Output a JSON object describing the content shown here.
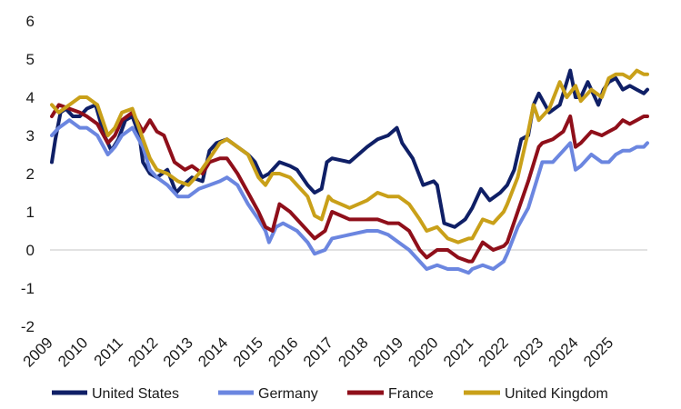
{
  "chart_data": {
    "type": "line",
    "title": "",
    "xlabel": "",
    "ylabel": "",
    "ylim": [
      -2,
      6
    ],
    "yticks": [
      "6",
      "5",
      "4",
      "3",
      "2",
      "1",
      "0",
      "-1",
      "-2"
    ],
    "xlim": [
      2009,
      2026
    ],
    "xticks": [
      "2009",
      "2010",
      "2011",
      "2012",
      "2013",
      "2014",
      "2015",
      "2016",
      "2017",
      "2018",
      "2019",
      "2020",
      "2021",
      "2022",
      "2023",
      "2024",
      "2025"
    ],
    "grid": false,
    "legend_position": "bottom",
    "series": [
      {
        "name": "United States",
        "color": "#0f1f66",
        "x": [
          2009.0,
          2009.1,
          2009.25,
          2009.4,
          2009.6,
          2009.8,
          2010.0,
          2010.25,
          2010.5,
          2010.7,
          2010.9,
          2011.1,
          2011.3,
          2011.5,
          2011.6,
          2011.8,
          2012.0,
          2012.3,
          2012.55,
          2012.75,
          2013.0,
          2013.3,
          2013.5,
          2013.7,
          2014.0,
          2014.3,
          2014.6,
          2014.8,
          2015.0,
          2015.2,
          2015.5,
          2015.8,
          2016.0,
          2016.3,
          2016.5,
          2016.7,
          2016.85,
          2017.0,
          2017.5,
          2018.0,
          2018.3,
          2018.6,
          2018.85,
          2019.0,
          2019.3,
          2019.6,
          2019.9,
          2020.0,
          2020.2,
          2020.5,
          2020.8,
          2021.0,
          2021.25,
          2021.5,
          2021.8,
          2022.0,
          2022.2,
          2022.4,
          2022.6,
          2022.75,
          2022.9,
          2023.2,
          2023.5,
          2023.8,
          2023.95,
          2024.1,
          2024.3,
          2024.6,
          2024.75,
          2024.9,
          2025.1,
          2025.3,
          2025.5,
          2025.7,
          2025.9,
          2026.0
        ],
        "values": [
          2.3,
          2.9,
          3.6,
          3.7,
          3.5,
          3.5,
          3.7,
          3.8,
          3.0,
          2.6,
          2.9,
          3.4,
          3.5,
          3.0,
          2.3,
          2.0,
          1.9,
          2.1,
          1.5,
          1.7,
          1.9,
          1.8,
          2.6,
          2.8,
          2.9,
          2.7,
          2.5,
          2.3,
          1.9,
          2.0,
          2.3,
          2.2,
          2.1,
          1.7,
          1.5,
          1.6,
          2.3,
          2.4,
          2.3,
          2.7,
          2.9,
          3.0,
          3.2,
          2.8,
          2.4,
          1.7,
          1.8,
          1.7,
          0.7,
          0.6,
          0.8,
          1.1,
          1.6,
          1.3,
          1.5,
          1.7,
          2.1,
          2.9,
          3.0,
          3.8,
          4.1,
          3.6,
          3.8,
          4.7,
          4.0,
          4.0,
          4.4,
          3.8,
          4.2,
          4.4,
          4.5,
          4.2,
          4.3,
          4.2,
          4.1,
          4.2
        ]
      },
      {
        "name": "Germany",
        "color": "#6b86e0",
        "x": [
          2009.0,
          2009.2,
          2009.5,
          2009.8,
          2010.0,
          2010.3,
          2010.6,
          2010.8,
          2011.0,
          2011.3,
          2011.6,
          2011.8,
          2012.0,
          2012.3,
          2012.6,
          2012.9,
          2013.2,
          2013.5,
          2013.8,
          2014.0,
          2014.3,
          2014.6,
          2014.9,
          2015.1,
          2015.2,
          2015.4,
          2015.6,
          2015.8,
          2016.0,
          2016.3,
          2016.5,
          2016.8,
          2017.0,
          2017.5,
          2018.0,
          2018.3,
          2018.6,
          2018.9,
          2019.2,
          2019.5,
          2019.7,
          2020.0,
          2020.3,
          2020.6,
          2020.9,
          2021.0,
          2021.3,
          2021.6,
          2021.9,
          2022.0,
          2022.3,
          2022.6,
          2022.9,
          2023.0,
          2023.3,
          2023.6,
          2023.8,
          2023.95,
          2024.1,
          2024.4,
          2024.7,
          2024.9,
          2025.1,
          2025.3,
          2025.5,
          2025.7,
          2025.9,
          2026.0
        ],
        "values": [
          3.0,
          3.2,
          3.4,
          3.2,
          3.2,
          3.0,
          2.5,
          2.7,
          3.0,
          3.2,
          2.7,
          2.1,
          1.9,
          1.7,
          1.4,
          1.4,
          1.6,
          1.7,
          1.8,
          1.9,
          1.7,
          1.2,
          0.8,
          0.5,
          0.2,
          0.6,
          0.7,
          0.6,
          0.5,
          0.2,
          -0.1,
          0.0,
          0.3,
          0.4,
          0.5,
          0.5,
          0.4,
          0.2,
          0.0,
          -0.3,
          -0.5,
          -0.4,
          -0.5,
          -0.5,
          -0.6,
          -0.5,
          -0.4,
          -0.5,
          -0.3,
          -0.1,
          0.6,
          1.1,
          2.0,
          2.3,
          2.3,
          2.6,
          2.8,
          2.1,
          2.2,
          2.5,
          2.3,
          2.3,
          2.5,
          2.6,
          2.6,
          2.7,
          2.7,
          2.8
        ]
      },
      {
        "name": "France",
        "color": "#8f0f1a",
        "x": [
          2009.0,
          2009.2,
          2009.5,
          2009.8,
          2010.0,
          2010.3,
          2010.6,
          2010.8,
          2011.0,
          2011.3,
          2011.6,
          2011.8,
          2012.0,
          2012.2,
          2012.5,
          2012.8,
          2013.0,
          2013.3,
          2013.5,
          2013.8,
          2014.0,
          2014.3,
          2014.6,
          2014.9,
          2015.1,
          2015.3,
          2015.5,
          2015.8,
          2016.0,
          2016.3,
          2016.5,
          2016.8,
          2017.0,
          2017.5,
          2018.0,
          2018.3,
          2018.6,
          2018.9,
          2019.2,
          2019.5,
          2019.7,
          2020.0,
          2020.3,
          2020.6,
          2020.9,
          2021.0,
          2021.3,
          2021.6,
          2021.9,
          2022.0,
          2022.3,
          2022.6,
          2022.9,
          2023.0,
          2023.3,
          2023.6,
          2023.8,
          2023.95,
          2024.1,
          2024.4,
          2024.7,
          2024.9,
          2025.1,
          2025.3,
          2025.5,
          2025.7,
          2025.9,
          2026.0
        ],
        "values": [
          3.5,
          3.8,
          3.7,
          3.6,
          3.5,
          3.3,
          2.8,
          3.0,
          3.4,
          3.6,
          3.1,
          3.4,
          3.1,
          3.0,
          2.3,
          2.1,
          2.2,
          2.0,
          2.3,
          2.4,
          2.4,
          2.0,
          1.5,
          1.0,
          0.6,
          0.5,
          1.2,
          1.0,
          0.8,
          0.5,
          0.3,
          0.5,
          1.0,
          0.8,
          0.8,
          0.8,
          0.7,
          0.7,
          0.5,
          0.0,
          -0.2,
          0.0,
          0.0,
          -0.2,
          -0.3,
          -0.3,
          0.2,
          0.0,
          0.1,
          0.2,
          1.0,
          1.8,
          2.7,
          2.8,
          2.9,
          3.1,
          3.5,
          2.7,
          2.8,
          3.1,
          3.0,
          3.1,
          3.2,
          3.4,
          3.3,
          3.4,
          3.5,
          3.5
        ]
      },
      {
        "name": "United Kingdom",
        "color": "#c9a019",
        "x": [
          2009.0,
          2009.2,
          2009.5,
          2009.8,
          2010.0,
          2010.3,
          2010.6,
          2010.8,
          2011.0,
          2011.3,
          2011.6,
          2011.8,
          2012.0,
          2012.3,
          2012.6,
          2012.9,
          2013.2,
          2013.5,
          2013.8,
          2014.0,
          2014.3,
          2014.6,
          2014.9,
          2015.1,
          2015.3,
          2015.5,
          2015.8,
          2016.0,
          2016.3,
          2016.5,
          2016.7,
          2016.9,
          2017.0,
          2017.5,
          2018.0,
          2018.3,
          2018.6,
          2018.9,
          2019.2,
          2019.5,
          2019.7,
          2020.0,
          2020.3,
          2020.6,
          2020.9,
          2021.0,
          2021.3,
          2021.6,
          2021.9,
          2022.0,
          2022.3,
          2022.6,
          2022.75,
          2022.9,
          2023.2,
          2023.5,
          2023.7,
          2023.95,
          2024.1,
          2024.4,
          2024.7,
          2024.9,
          2025.1,
          2025.3,
          2025.5,
          2025.7,
          2025.9,
          2026.0
        ],
        "values": [
          3.8,
          3.6,
          3.8,
          4.0,
          4.0,
          3.8,
          3.0,
          3.2,
          3.6,
          3.7,
          2.9,
          2.4,
          2.1,
          2.0,
          1.8,
          1.7,
          2.0,
          2.4,
          2.8,
          2.9,
          2.7,
          2.5,
          1.9,
          1.7,
          2.0,
          2.0,
          1.9,
          1.7,
          1.4,
          0.9,
          0.8,
          1.4,
          1.3,
          1.1,
          1.3,
          1.5,
          1.4,
          1.4,
          1.2,
          0.8,
          0.5,
          0.6,
          0.3,
          0.2,
          0.3,
          0.3,
          0.8,
          0.7,
          1.0,
          1.2,
          1.9,
          3.1,
          3.8,
          3.4,
          3.7,
          4.4,
          4.0,
          4.3,
          3.9,
          4.2,
          4.0,
          4.5,
          4.6,
          4.6,
          4.5,
          4.7,
          4.6,
          4.6
        ]
      }
    ]
  }
}
